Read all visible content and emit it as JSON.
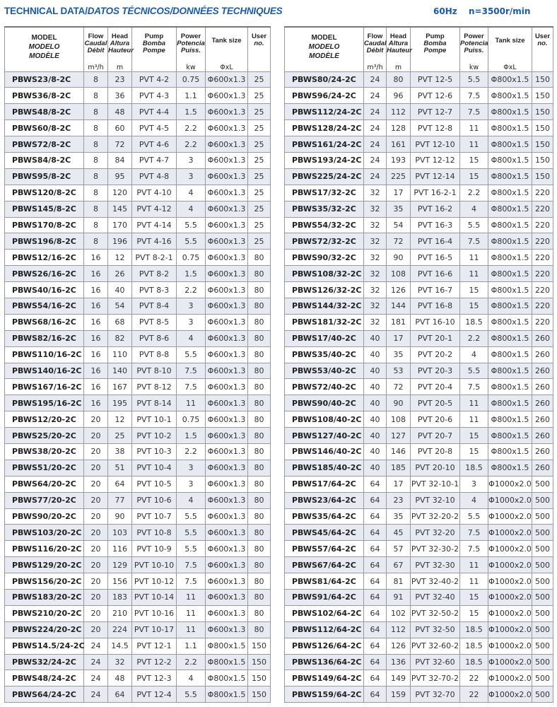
{
  "header": {
    "title_en": "TECHNICAL DATA/",
    "title_es_fr": "DATOS TÉCNICOS/DONNÉES TECHNIQUES",
    "frequency": "60Hz",
    "speed": "n=3500r/min"
  },
  "columns": {
    "model": [
      "MODEL",
      "MODELO",
      "MODÈLE"
    ],
    "flow": [
      "Flow",
      "Caudal",
      "Débit"
    ],
    "head": [
      "Head",
      "Altura",
      "Hauteur"
    ],
    "pump": [
      "Pump",
      "Bomba",
      "Pompe"
    ],
    "power": [
      "Power",
      "Potencia",
      "Puiss."
    ],
    "tank": [
      "Tank size"
    ],
    "user": [
      "User",
      "no."
    ]
  },
  "units": [
    "m³/h",
    "m",
    "",
    "kw",
    "ΦxL",
    ""
  ],
  "left_rows": [
    [
      "PBWS23/8-2C",
      "8",
      "23",
      "PVT 4-2",
      "0.75",
      "Φ600x1.3",
      "25"
    ],
    [
      "PBWS36/8-2C",
      "8",
      "36",
      "PVT 4-3",
      "1.1",
      "Φ600x1.3",
      "25"
    ],
    [
      "PBWS48/8-2C",
      "8",
      "48",
      "PVT 4-4",
      "1.5",
      "Φ600x1.3",
      "25"
    ],
    [
      "PBWS60/8-2C",
      "8",
      "60",
      "PVT 4-5",
      "2.2",
      "Φ600x1.3",
      "25"
    ],
    [
      "PBWS72/8-2C",
      "8",
      "72",
      "PVT 4-6",
      "2.2",
      "Φ600x1.3",
      "25"
    ],
    [
      "PBWS84/8-2C",
      "8",
      "84",
      "PVT 4-7",
      "3",
      "Φ600x1.3",
      "25"
    ],
    [
      "PBWS95/8-2C",
      "8",
      "95",
      "PVT 4-8",
      "3",
      "Φ600x1.3",
      "25"
    ],
    [
      "PBWS120/8-2C",
      "8",
      "120",
      "PVT 4-10",
      "4",
      "Φ600x1.3",
      "25"
    ],
    [
      "PBWS145/8-2C",
      "8",
      "145",
      "PVT 4-12",
      "4",
      "Φ600x1.3",
      "25"
    ],
    [
      "PBWS170/8-2C",
      "8",
      "170",
      "PVT 4-14",
      "5.5",
      "Φ600x1.3",
      "25"
    ],
    [
      "PBWS196/8-2C",
      "8",
      "196",
      "PVT 4-16",
      "5.5",
      "Φ600x1.3",
      "25"
    ],
    [
      "PBWS12/16-2C",
      "16",
      "12",
      "PVT 8-2-1",
      "0.75",
      "Φ600x1.3",
      "80"
    ],
    [
      "PBWS26/16-2C",
      "16",
      "26",
      "PVT 8-2",
      "1.5",
      "Φ600x1.3",
      "80"
    ],
    [
      "PBWS40/16-2C",
      "16",
      "40",
      "PVT 8-3",
      "2.2",
      "Φ600x1.3",
      "80"
    ],
    [
      "PBWS54/16-2C",
      "16",
      "54",
      "PVT 8-4",
      "3",
      "Φ600x1.3",
      "80"
    ],
    [
      "PBWS68/16-2C",
      "16",
      "68",
      "PVT 8-5",
      "3",
      "Φ600x1.3",
      "80"
    ],
    [
      "PBWS82/16-2C",
      "16",
      "82",
      "PVT 8-6",
      "4",
      "Φ600x1.3",
      "80"
    ],
    [
      "PBWS110/16-2C",
      "16",
      "110",
      "PVT 8-8",
      "5.5",
      "Φ600x1.3",
      "80"
    ],
    [
      "PBWS140/16-2C",
      "16",
      "140",
      "PVT 8-10",
      "7.5",
      "Φ600x1.3",
      "80"
    ],
    [
      "PBWS167/16-2C",
      "16",
      "167",
      "PVT 8-12",
      "7.5",
      "Φ600x1.3",
      "80"
    ],
    [
      "PBWS195/16-2C",
      "16",
      "195",
      "PVT 8-14",
      "11",
      "Φ600x1.3",
      "80"
    ],
    [
      "PBWS12/20-2C",
      "20",
      "12",
      "PVT 10-1",
      "0.75",
      "Φ600x1.3",
      "80"
    ],
    [
      "PBWS25/20-2C",
      "20",
      "25",
      "PVT 10-2",
      "1.5",
      "Φ600x1.3",
      "80"
    ],
    [
      "PBWS38/20-2C",
      "20",
      "38",
      "PVT 10-3",
      "2.2",
      "Φ600x1.3",
      "80"
    ],
    [
      "PBWS51/20-2C",
      "20",
      "51",
      "PVT 10-4",
      "3",
      "Φ600x1.3",
      "80"
    ],
    [
      "PBWS64/20-2C",
      "20",
      "64",
      "PVT 10-5",
      "3",
      "Φ600x1.3",
      "80"
    ],
    [
      "PBWS77/20-2C",
      "20",
      "77",
      "PVT 10-6",
      "4",
      "Φ600x1.3",
      "80"
    ],
    [
      "PBWS90/20-2C",
      "20",
      "90",
      "PVT 10-7",
      "5.5",
      "Φ600x1.3",
      "80"
    ],
    [
      "PBWS103/20-2C",
      "20",
      "103",
      "PVT 10-8",
      "5.5",
      "Φ600x1.3",
      "80"
    ],
    [
      "PBWS116/20-2C",
      "20",
      "116",
      "PVT 10-9",
      "5.5",
      "Φ600x1.3",
      "80"
    ],
    [
      "PBWS129/20-2C",
      "20",
      "129",
      "PVT 10-10",
      "7.5",
      "Φ600x1.3",
      "80"
    ],
    [
      "PBWS156/20-2C",
      "20",
      "156",
      "PVT 10-12",
      "7.5",
      "Φ600x1.3",
      "80"
    ],
    [
      "PBWS183/20-2C",
      "20",
      "183",
      "PVT 10-14",
      "11",
      "Φ600x1.3",
      "80"
    ],
    [
      "PBWS210/20-2C",
      "20",
      "210",
      "PVT 10-16",
      "11",
      "Φ600x1.3",
      "80"
    ],
    [
      "PBWS224/20-2C",
      "20",
      "224",
      "PVT 10-17",
      "11",
      "Φ600x1.3",
      "80"
    ],
    [
      "PBWS14.5/24-2C",
      "24",
      "14.5",
      "PVT 12-1",
      "1.1",
      "Φ800x1.5",
      "150"
    ],
    [
      "PBWS32/24-2C",
      "24",
      "32",
      "PVT 12-2",
      "2.2",
      "Φ800x1.5",
      "150"
    ],
    [
      "PBWS48/24-2C",
      "24",
      "48",
      "PVT 12-3",
      "4",
      "Φ800x1.5",
      "150"
    ],
    [
      "PBWS64/24-2C",
      "24",
      "64",
      "PVT 12-4",
      "5.5",
      "Φ800x1.5",
      "150"
    ]
  ],
  "right_rows": [
    [
      "PBWS80/24-2C",
      "24",
      "80",
      "PVT 12-5",
      "5.5",
      "Φ800x1.5",
      "150"
    ],
    [
      "PBWS96/24-2C",
      "24",
      "96",
      "PVT 12-6",
      "7.5",
      "Φ800x1.5",
      "150"
    ],
    [
      "PBWS112/24-2C",
      "24",
      "112",
      "PVT 12-7",
      "7.5",
      "Φ800x1.5",
      "150"
    ],
    [
      "PBWS128/24-2C",
      "24",
      "128",
      "PVT 12-8",
      "11",
      "Φ800x1.5",
      "150"
    ],
    [
      "PBWS161/24-2C",
      "24",
      "161",
      "PVT 12-10",
      "11",
      "Φ800x1.5",
      "150"
    ],
    [
      "PBWS193/24-2C",
      "24",
      "193",
      "PVT 12-12",
      "15",
      "Φ800x1.5",
      "150"
    ],
    [
      "PBWS225/24-2C",
      "24",
      "225",
      "PVT 12-14",
      "15",
      "Φ800x1.5",
      "150"
    ],
    [
      "PBWS17/32-2C",
      "32",
      "17",
      "PVT 16-2-1",
      "2.2",
      "Φ800x1.5",
      "220"
    ],
    [
      "PBWS35/32-2C",
      "32",
      "35",
      "PVT 16-2",
      "4",
      "Φ800x1.5",
      "220"
    ],
    [
      "PBWS54/32-2C",
      "32",
      "54",
      "PVT 16-3",
      "5.5",
      "Φ800x1.5",
      "220"
    ],
    [
      "PBWS72/32-2C",
      "32",
      "72",
      "PVT 16-4",
      "7.5",
      "Φ800x1.5",
      "220"
    ],
    [
      "PBWS90/32-2C",
      "32",
      "90",
      "PVT 16-5",
      "11",
      "Φ800x1.5",
      "220"
    ],
    [
      "PBWS108/32-2C",
      "32",
      "108",
      "PVT 16-6",
      "11",
      "Φ800x1.5",
      "220"
    ],
    [
      "PBWS126/32-2C",
      "32",
      "126",
      "PVT 16-7",
      "15",
      "Φ800x1.5",
      "220"
    ],
    [
      "PBWS144/32-2C",
      "32",
      "144",
      "PVT 16-8",
      "15",
      "Φ800x1.5",
      "220"
    ],
    [
      "PBWS181/32-2C",
      "32",
      "181",
      "PVT 16-10",
      "18.5",
      "Φ800x1.5",
      "220"
    ],
    [
      "PBWS17/40-2C",
      "40",
      "17",
      "PVT 20-1",
      "2.2",
      "Φ800x1.5",
      "260"
    ],
    [
      "PBWS35/40-2C",
      "40",
      "35",
      "PVT 20-2",
      "4",
      "Φ800x1.5",
      "260"
    ],
    [
      "PBWS53/40-2C",
      "40",
      "53",
      "PVT 20-3",
      "5.5",
      "Φ800x1.5",
      "260"
    ],
    [
      "PBWS72/40-2C",
      "40",
      "72",
      "PVT 20-4",
      "7.5",
      "Φ800x1.5",
      "260"
    ],
    [
      "PBWS90/40-2C",
      "40",
      "90",
      "PVT 20-5",
      "11",
      "Φ800x1.5",
      "260"
    ],
    [
      "PBWS108/40-2C",
      "40",
      "108",
      "PVT 20-6",
      "11",
      "Φ800x1.5",
      "260"
    ],
    [
      "PBWS127/40-2C",
      "40",
      "127",
      "PVT 20-7",
      "15",
      "Φ800x1.5",
      "260"
    ],
    [
      "PBWS146/40-2C",
      "40",
      "146",
      "PVT 20-8",
      "15",
      "Φ800x1.5",
      "260"
    ],
    [
      "PBWS185/40-2C",
      "40",
      "185",
      "PVT 20-10",
      "18.5",
      "Φ800x1.5",
      "260"
    ],
    [
      "PBWS17/64-2C",
      "64",
      "17",
      "PVT 32-10-1",
      "3",
      "Φ1000x2.0",
      "500"
    ],
    [
      "PBWS23/64-2C",
      "64",
      "23",
      "PVT 32-10",
      "4",
      "Φ1000x2.0",
      "500"
    ],
    [
      "PBWS35/64-2C",
      "64",
      "35",
      "PVT 32-20-2",
      "5.5",
      "Φ1000x2.0",
      "500"
    ],
    [
      "PBWS45/64-2C",
      "64",
      "45",
      "PVT 32-20",
      "7.5",
      "Φ1000x2.0",
      "500"
    ],
    [
      "PBWS57/64-2C",
      "64",
      "57",
      "PVT 32-30-2",
      "7.5",
      "Φ1000x2.0",
      "500"
    ],
    [
      "PBWS67/64-2C",
      "64",
      "67",
      "PVT 32-30",
      "11",
      "Φ1000x2.0",
      "500"
    ],
    [
      "PBWS81/64-2C",
      "64",
      "81",
      "PVT 32-40-2",
      "11",
      "Φ1000x2.0",
      "500"
    ],
    [
      "PBWS91/64-2C",
      "64",
      "91",
      "PVT 32-40",
      "15",
      "Φ1000x2.0",
      "500"
    ],
    [
      "PBWS102/64-2C",
      "64",
      "102",
      "PVT 32-50-2",
      "15",
      "Φ1000x2.0",
      "500"
    ],
    [
      "PBWS112/64-2C",
      "64",
      "112",
      "PVT 32-50",
      "18.5",
      "Φ1000x2.0",
      "500"
    ],
    [
      "PBWS126/64-2C",
      "64",
      "126",
      "PVT 32-60-2",
      "18.5",
      "Φ1000x2.0",
      "500"
    ],
    [
      "PBWS136/64-2C",
      "64",
      "136",
      "PVT 32-60",
      "18.5",
      "Φ1000x2.0",
      "500"
    ],
    [
      "PBWS149/64-2C",
      "64",
      "149",
      "PVT 32-70-2",
      "22",
      "Φ1000x2.0",
      "500"
    ],
    [
      "PBWS159/64-2C",
      "64",
      "159",
      "PVT 32-70",
      "22",
      "Φ1000x2.0",
      "500"
    ]
  ]
}
